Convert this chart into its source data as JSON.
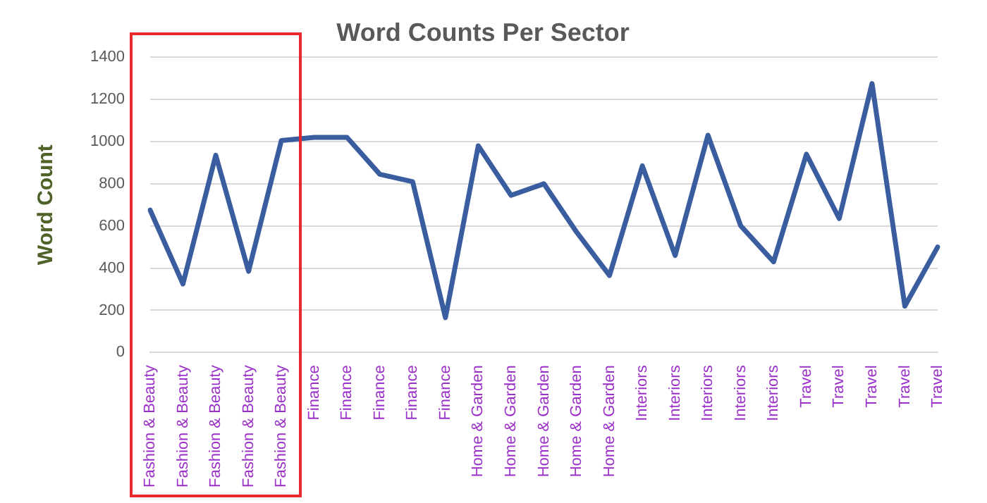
{
  "chart_data": {
    "type": "line",
    "title": "Word Counts Per Sector",
    "ylabel": "Word Count",
    "categories": [
      "Fashion & Beauty",
      "Fashion & Beauty",
      "Fashion & Beauty",
      "Fashion & Beauty",
      "Fashion & Beauty",
      "Finance",
      "Finance",
      "Finance",
      "Finance",
      "Finance",
      "Home & Garden",
      "Home & Garden",
      "Home & Garden",
      "Home & Garden",
      "Home & Garden",
      "Interiors",
      "Interiors",
      "Interiors",
      "Interiors",
      "Interiors",
      "Travel",
      "Travel",
      "Travel",
      "Travel",
      "Travel"
    ],
    "series": [
      {
        "color": "#3a5da0",
        "values": [
          675,
          325,
          935,
          385,
          1005,
          1020,
          1020,
          845,
          810,
          165,
          980,
          745,
          800,
          570,
          365,
          885,
          460,
          1030,
          600,
          430,
          940,
          635,
          1275,
          220,
          500
        ]
      }
    ],
    "ylim": [
      0,
      1400
    ],
    "yticks": [
      0,
      200,
      400,
      600,
      800,
      1000,
      1200,
      1400
    ],
    "grid": "y",
    "legend": false,
    "marker": "none",
    "line_style": "solid"
  }
}
